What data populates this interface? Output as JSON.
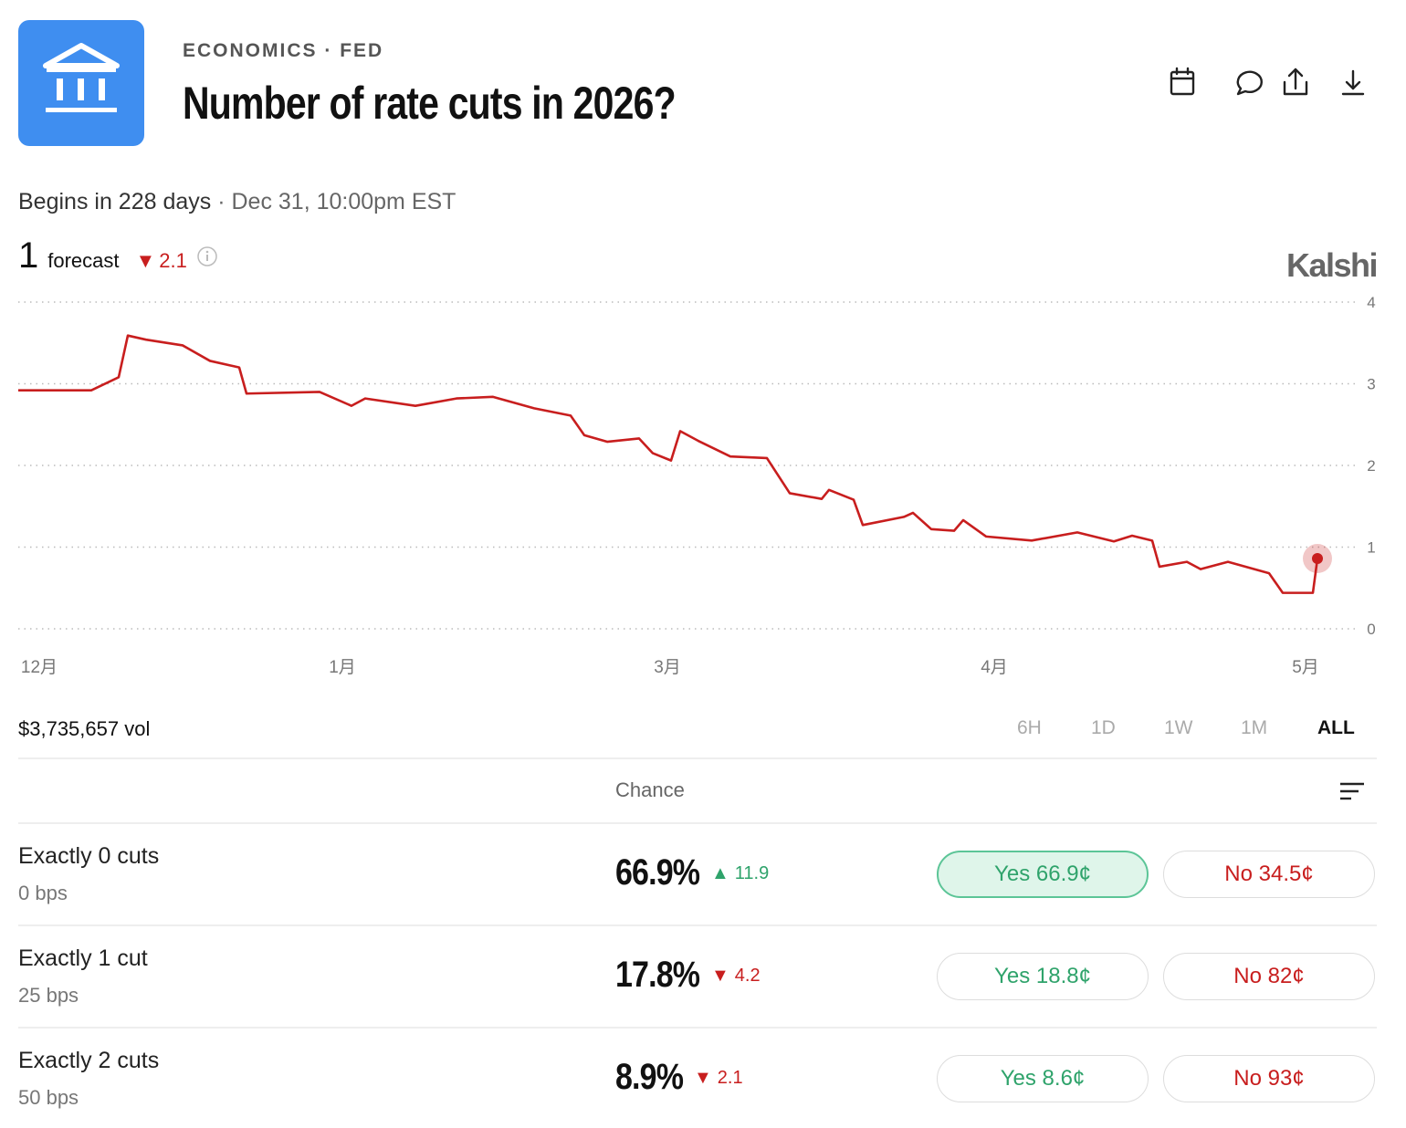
{
  "header": {
    "category": "ECONOMICS",
    "subcategory": "FED",
    "title": "Number of rate cuts in 2026?"
  },
  "schedule": {
    "begins": "Begins in 228 days",
    "date": "Dec 31, 10:00pm EST"
  },
  "forecast": {
    "value": 1,
    "label": "forecast",
    "change": 2.1,
    "trend": "down"
  },
  "brand": "Kalshi",
  "chart_data": {
    "type": "line",
    "color": "#c81e1e",
    "x": [
      0,
      80,
      110,
      120,
      140,
      180,
      210,
      242,
      250,
      330,
      365,
      380,
      435,
      480,
      520,
      565,
      605,
      620,
      645,
      680,
      695,
      715,
      725,
      745,
      780,
      820,
      845,
      880,
      888,
      915,
      925,
      970,
      980,
      1000,
      1025,
      1035,
      1060,
      1110,
      1160,
      1200,
      1220,
      1242,
      1250,
      1280,
      1295,
      1325,
      1370,
      1385,
      1418,
      1423
    ],
    "values": [
      2.92,
      2.92,
      3.08,
      3.59,
      3.54,
      3.47,
      3.28,
      3.2,
      2.88,
      2.9,
      2.73,
      2.82,
      2.73,
      2.82,
      2.84,
      2.7,
      2.61,
      2.37,
      2.29,
      2.33,
      2.15,
      2.06,
      2.42,
      2.3,
      2.11,
      2.09,
      1.66,
      1.59,
      1.7,
      1.58,
      1.27,
      1.37,
      1.42,
      1.22,
      1.2,
      1.33,
      1.13,
      1.08,
      1.18,
      1.07,
      1.14,
      1.08,
      0.76,
      0.82,
      0.73,
      0.82,
      0.68,
      0.44,
      0.44,
      0.86
    ],
    "xlim": [
      0,
      1467
    ],
    "xticks": [
      {
        "value": 23,
        "label": "12月"
      },
      {
        "value": 355,
        "label": "1月"
      },
      {
        "value": 711,
        "label": "3月"
      },
      {
        "value": 1069,
        "label": "4月"
      },
      {
        "value": 1410,
        "label": "5月"
      }
    ],
    "ylim": [
      0,
      4
    ],
    "yticks": [
      0,
      1,
      2,
      3,
      4
    ],
    "grid": true
  },
  "volume": "$3,735,657 vol",
  "timeframes": [
    "6H",
    "1D",
    "1W",
    "1M",
    "ALL"
  ],
  "active_timeframe": "ALL",
  "table": {
    "header": "Chance",
    "rows": [
      {
        "name": "Exactly 0 cuts",
        "detail": "0 bps",
        "chance": "66.9%",
        "change": 11.9,
        "trend": "up",
        "yes": "Yes 66.9¢",
        "no": "No 34.5¢",
        "selected": true
      },
      {
        "name": "Exactly 1 cut",
        "detail": "25 bps",
        "chance": "17.8%",
        "change": 4.2,
        "trend": "down",
        "yes": "Yes 18.8¢",
        "no": "No 82¢",
        "selected": false
      },
      {
        "name": "Exactly 2 cuts",
        "detail": "50 bps",
        "chance": "8.9%",
        "change": 2.1,
        "trend": "down",
        "yes": "Yes 8.6¢",
        "no": "No 93¢",
        "selected": false
      }
    ]
  }
}
